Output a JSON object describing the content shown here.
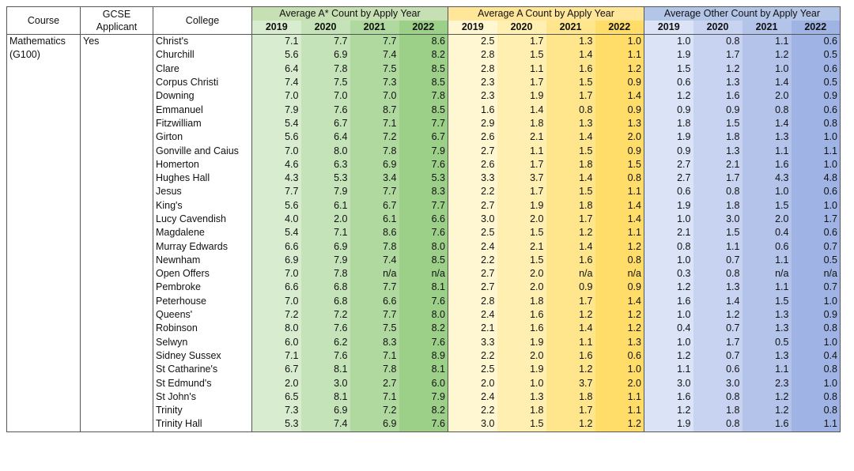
{
  "headers": {
    "course": "Course",
    "gcse": "GCSE Applicant",
    "college": "College",
    "group_astar": "Average A* Count by Apply Year",
    "group_a": "Average A Count by Apply Year",
    "group_other": "Average Other Count by Apply Year",
    "years": [
      "2019",
      "2020",
      "2021",
      "2022"
    ]
  },
  "course": "Mathematics (G100)",
  "gcse_value": "Yes",
  "colors": {
    "astar": [
      "#d8ecd0",
      "#c4e3b8",
      "#b0d9a0",
      "#9ccf88"
    ],
    "a": [
      "#fff6d2",
      "#ffefb0",
      "#ffe68c",
      "#ffdd68"
    ],
    "other": [
      "#dbe3f6",
      "#c7d3f0",
      "#b3c3ea",
      "#9fb3e4"
    ],
    "astar_head": "#c6e0b4",
    "a_head": "#ffe699",
    "other_head": "#b4c6e7"
  },
  "rows": [
    {
      "college": "Christ's",
      "astar": [
        "7.1",
        "7.7",
        "7.7",
        "8.6"
      ],
      "a": [
        "2.5",
        "1.7",
        "1.3",
        "1.0"
      ],
      "other": [
        "1.0",
        "0.8",
        "1.1",
        "0.6"
      ]
    },
    {
      "college": "Churchill",
      "astar": [
        "5.6",
        "6.9",
        "7.4",
        "8.2"
      ],
      "a": [
        "2.8",
        "1.5",
        "1.4",
        "1.1"
      ],
      "other": [
        "1.9",
        "1.7",
        "1.2",
        "0.5"
      ]
    },
    {
      "college": "Clare",
      "astar": [
        "6.4",
        "7.8",
        "7.5",
        "8.5"
      ],
      "a": [
        "2.8",
        "1.1",
        "1.6",
        "1.2"
      ],
      "other": [
        "1.5",
        "1.2",
        "1.0",
        "0.6"
      ]
    },
    {
      "college": "Corpus Christi",
      "astar": [
        "7.4",
        "7.5",
        "7.3",
        "8.5"
      ],
      "a": [
        "2.3",
        "1.7",
        "1.5",
        "0.9"
      ],
      "other": [
        "0.6",
        "1.3",
        "1.4",
        "0.5"
      ]
    },
    {
      "college": "Downing",
      "astar": [
        "7.0",
        "7.0",
        "7.0",
        "7.8"
      ],
      "a": [
        "2.3",
        "1.9",
        "1.7",
        "1.4"
      ],
      "other": [
        "1.2",
        "1.6",
        "2.0",
        "0.9"
      ]
    },
    {
      "college": "Emmanuel",
      "astar": [
        "7.9",
        "7.6",
        "8.7",
        "8.5"
      ],
      "a": [
        "1.6",
        "1.4",
        "0.8",
        "0.9"
      ],
      "other": [
        "0.9",
        "0.9",
        "0.8",
        "0.6"
      ]
    },
    {
      "college": "Fitzwilliam",
      "astar": [
        "5.4",
        "6.7",
        "7.1",
        "7.7"
      ],
      "a": [
        "2.9",
        "1.8",
        "1.3",
        "1.3"
      ],
      "other": [
        "1.8",
        "1.5",
        "1.4",
        "0.8"
      ]
    },
    {
      "college": "Girton",
      "astar": [
        "5.6",
        "6.4",
        "7.2",
        "6.7"
      ],
      "a": [
        "2.6",
        "2.1",
        "1.4",
        "2.0"
      ],
      "other": [
        "1.9",
        "1.8",
        "1.3",
        "1.0"
      ]
    },
    {
      "college": "Gonville and Caius",
      "astar": [
        "7.0",
        "8.0",
        "7.8",
        "7.9"
      ],
      "a": [
        "2.7",
        "1.1",
        "1.5",
        "0.9"
      ],
      "other": [
        "0.9",
        "1.3",
        "1.1",
        "1.1"
      ]
    },
    {
      "college": "Homerton",
      "astar": [
        "4.6",
        "6.3",
        "6.9",
        "7.6"
      ],
      "a": [
        "2.6",
        "1.7",
        "1.8",
        "1.5"
      ],
      "other": [
        "2.7",
        "2.1",
        "1.6",
        "1.0"
      ]
    },
    {
      "college": "Hughes Hall",
      "astar": [
        "4.3",
        "5.3",
        "3.4",
        "5.3"
      ],
      "a": [
        "3.3",
        "3.7",
        "1.4",
        "0.8"
      ],
      "other": [
        "2.7",
        "1.7",
        "4.3",
        "4.8"
      ]
    },
    {
      "college": "Jesus",
      "astar": [
        "7.7",
        "7.9",
        "7.7",
        "8.3"
      ],
      "a": [
        "2.2",
        "1.7",
        "1.5",
        "1.1"
      ],
      "other": [
        "0.6",
        "0.8",
        "1.0",
        "0.6"
      ]
    },
    {
      "college": "King's",
      "astar": [
        "5.6",
        "6.1",
        "6.7",
        "7.7"
      ],
      "a": [
        "2.7",
        "1.9",
        "1.8",
        "1.4"
      ],
      "other": [
        "1.9",
        "1.8",
        "1.5",
        "1.0"
      ]
    },
    {
      "college": "Lucy Cavendish",
      "astar": [
        "4.0",
        "2.0",
        "6.1",
        "6.6"
      ],
      "a": [
        "3.0",
        "2.0",
        "1.7",
        "1.4"
      ],
      "other": [
        "1.0",
        "3.0",
        "2.0",
        "1.7"
      ]
    },
    {
      "college": "Magdalene",
      "astar": [
        "5.4",
        "7.1",
        "8.6",
        "7.6"
      ],
      "a": [
        "2.5",
        "1.5",
        "1.2",
        "1.1"
      ],
      "other": [
        "2.1",
        "1.5",
        "0.4",
        "0.6"
      ]
    },
    {
      "college": "Murray Edwards",
      "astar": [
        "6.6",
        "6.9",
        "7.8",
        "8.0"
      ],
      "a": [
        "2.4",
        "2.1",
        "1.4",
        "1.2"
      ],
      "other": [
        "0.8",
        "1.1",
        "0.6",
        "0.7"
      ]
    },
    {
      "college": "Newnham",
      "astar": [
        "6.9",
        "7.9",
        "7.4",
        "8.5"
      ],
      "a": [
        "2.2",
        "1.5",
        "1.6",
        "0.8"
      ],
      "other": [
        "1.0",
        "0.7",
        "1.1",
        "0.5"
      ]
    },
    {
      "college": "Open Offers",
      "astar": [
        "7.0",
        "7.8",
        "n/a",
        "n/a"
      ],
      "a": [
        "2.7",
        "2.0",
        "n/a",
        "n/a"
      ],
      "other": [
        "0.3",
        "0.8",
        "n/a",
        "n/a"
      ]
    },
    {
      "college": "Pembroke",
      "astar": [
        "6.6",
        "6.8",
        "7.7",
        "8.1"
      ],
      "a": [
        "2.7",
        "2.0",
        "0.9",
        "0.9"
      ],
      "other": [
        "1.2",
        "1.3",
        "1.1",
        "0.7"
      ]
    },
    {
      "college": "Peterhouse",
      "astar": [
        "7.0",
        "6.8",
        "6.6",
        "7.6"
      ],
      "a": [
        "2.8",
        "1.8",
        "1.7",
        "1.4"
      ],
      "other": [
        "1.6",
        "1.4",
        "1.5",
        "1.0"
      ]
    },
    {
      "college": "Queens'",
      "astar": [
        "7.2",
        "7.2",
        "7.7",
        "8.0"
      ],
      "a": [
        "2.4",
        "1.6",
        "1.2",
        "1.2"
      ],
      "other": [
        "1.0",
        "1.2",
        "1.3",
        "0.9"
      ]
    },
    {
      "college": "Robinson",
      "astar": [
        "8.0",
        "7.6",
        "7.5",
        "8.2"
      ],
      "a": [
        "2.1",
        "1.6",
        "1.4",
        "1.2"
      ],
      "other": [
        "0.4",
        "0.7",
        "1.3",
        "0.8"
      ]
    },
    {
      "college": "Selwyn",
      "astar": [
        "6.0",
        "6.2",
        "8.3",
        "7.6"
      ],
      "a": [
        "3.3",
        "1.9",
        "1.1",
        "1.3"
      ],
      "other": [
        "1.0",
        "1.7",
        "0.5",
        "1.0"
      ]
    },
    {
      "college": "Sidney Sussex",
      "astar": [
        "7.1",
        "7.6",
        "7.1",
        "8.9"
      ],
      "a": [
        "2.2",
        "2.0",
        "1.6",
        "0.6"
      ],
      "other": [
        "1.2",
        "0.7",
        "1.3",
        "0.4"
      ]
    },
    {
      "college": "St Catharine's",
      "astar": [
        "6.7",
        "8.1",
        "7.8",
        "8.1"
      ],
      "a": [
        "2.5",
        "1.9",
        "1.2",
        "1.0"
      ],
      "other": [
        "1.1",
        "0.6",
        "1.1",
        "0.8"
      ]
    },
    {
      "college": "St Edmund's",
      "astar": [
        "2.0",
        "3.0",
        "2.7",
        "6.0"
      ],
      "a": [
        "2.0",
        "1.0",
        "3.7",
        "2.0"
      ],
      "other": [
        "3.0",
        "3.0",
        "2.3",
        "1.0"
      ]
    },
    {
      "college": "St John's",
      "astar": [
        "6.5",
        "8.1",
        "7.1",
        "7.9"
      ],
      "a": [
        "2.4",
        "1.3",
        "1.8",
        "1.1"
      ],
      "other": [
        "1.6",
        "0.8",
        "1.2",
        "0.8"
      ]
    },
    {
      "college": "Trinity",
      "astar": [
        "7.3",
        "6.9",
        "7.2",
        "8.2"
      ],
      "a": [
        "2.2",
        "1.8",
        "1.7",
        "1.1"
      ],
      "other": [
        "1.2",
        "1.8",
        "1.2",
        "0.8"
      ]
    },
    {
      "college": "Trinity Hall",
      "astar": [
        "5.3",
        "7.4",
        "6.9",
        "7.6"
      ],
      "a": [
        "3.0",
        "1.5",
        "1.2",
        "1.2"
      ],
      "other": [
        "1.9",
        "0.8",
        "1.6",
        "1.1"
      ]
    }
  ]
}
